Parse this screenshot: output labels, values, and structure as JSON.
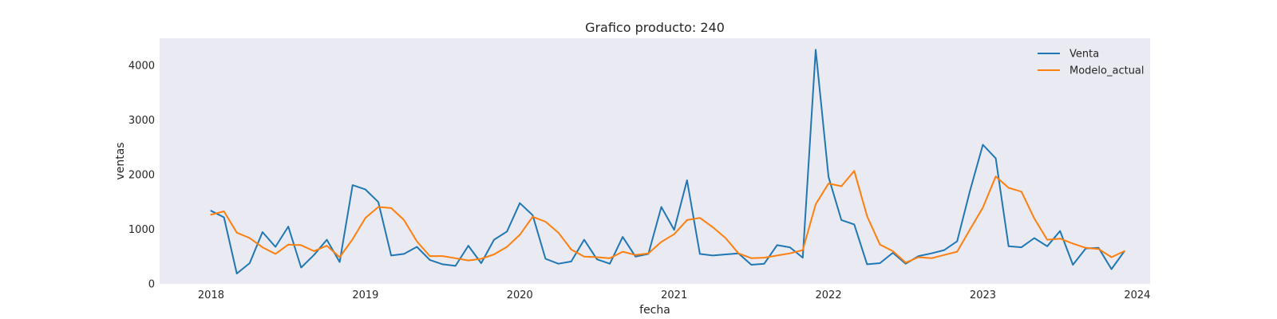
{
  "chart_data": {
    "type": "line",
    "title": "Grafico producto: 240",
    "xlabel": "fecha",
    "ylabel": "ventas",
    "x_start": "2018-01",
    "x_ticks": [
      "2018",
      "2019",
      "2020",
      "2021",
      "2022",
      "2023",
      "2024"
    ],
    "x_range": [
      "2017-09",
      "2024-02"
    ],
    "y_ticks": [
      0,
      1000,
      2000,
      3000,
      4000
    ],
    "ylim": [
      0,
      4500
    ],
    "grid": false,
    "legend": "top-right",
    "series": [
      {
        "name": "Venta",
        "color": "#1f77b4",
        "values": [
          1340,
          1220,
          190,
          380,
          950,
          680,
          1050,
          300,
          530,
          810,
          400,
          1810,
          1730,
          1500,
          520,
          550,
          680,
          440,
          360,
          330,
          700,
          380,
          810,
          960,
          1480,
          1260,
          460,
          370,
          410,
          810,
          450,
          370,
          860,
          500,
          550,
          1410,
          990,
          1900,
          550,
          520,
          540,
          560,
          350,
          370,
          710,
          670,
          480,
          4290,
          1960,
          1170,
          1090,
          360,
          380,
          570,
          370,
          510,
          560,
          620,
          780,
          1710,
          2550,
          2300,
          690,
          670,
          840,
          690,
          970,
          350,
          650,
          660,
          270,
          600
        ]
      },
      {
        "name": "Modelo_actual",
        "color": "#ff7f0e",
        "values": [
          1270,
          1330,
          940,
          840,
          670,
          550,
          720,
          710,
          600,
          700,
          490,
          820,
          1210,
          1410,
          1390,
          1170,
          780,
          510,
          510,
          470,
          430,
          460,
          540,
          680,
          900,
          1230,
          1140,
          940,
          630,
          500,
          490,
          470,
          590,
          530,
          560,
          770,
          910,
          1170,
          1210,
          1040,
          840,
          560,
          470,
          480,
          520,
          560,
          620,
          1460,
          1840,
          1790,
          2070,
          1240,
          720,
          600,
          390,
          490,
          470,
          530,
          590,
          1000,
          1400,
          1970,
          1760,
          1690,
          1200,
          810,
          830,
          740,
          660,
          640,
          490,
          600
        ]
      }
    ]
  }
}
